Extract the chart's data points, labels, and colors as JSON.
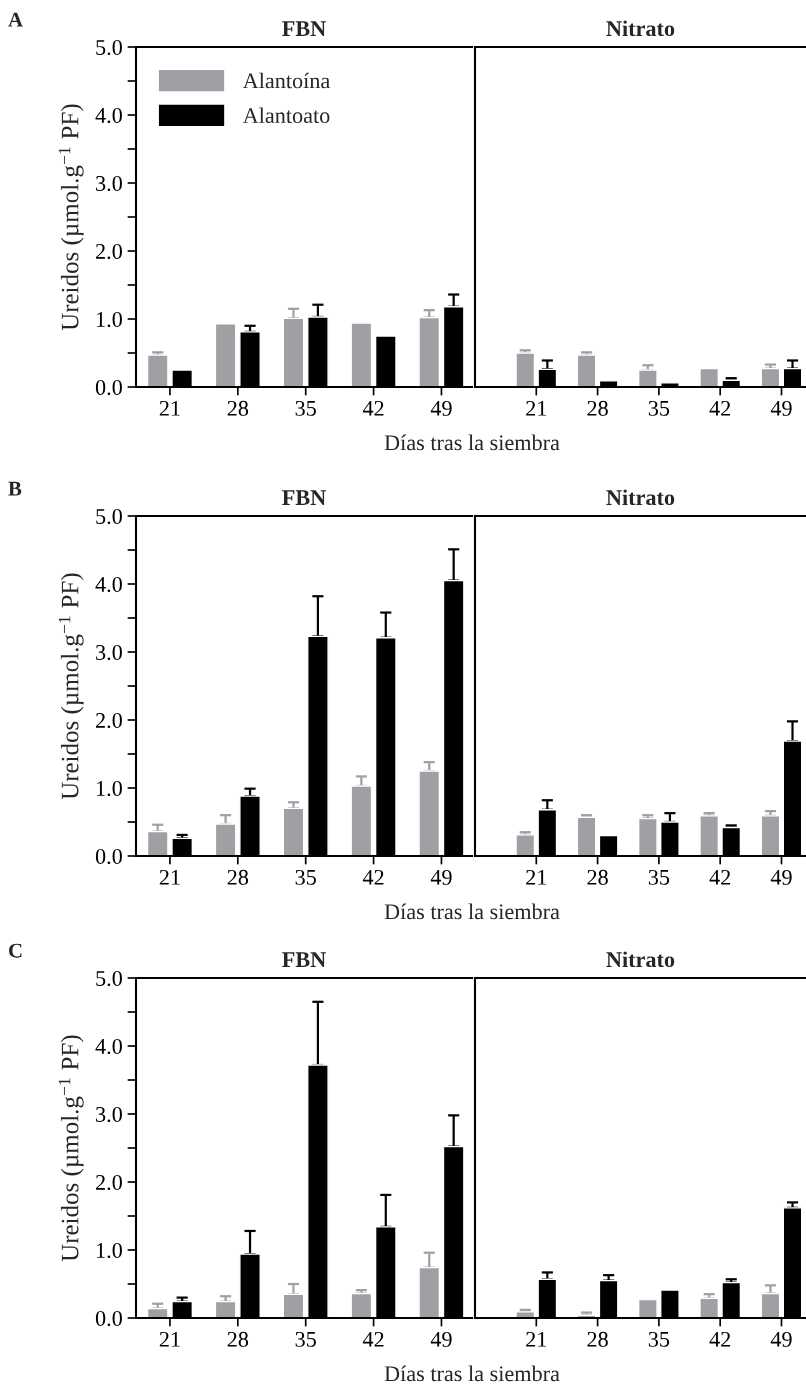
{
  "chart_data": [
    {
      "type": "bar",
      "title": "FBN",
      "xlabel": "Días tras la siembra",
      "ylabel": "Ureidos (µmol.g$^{−1}$ PF)",
      "annotations": [
        "A"
      ],
      "legend": "top left",
      "categories": [
        "21",
        "28",
        "35",
        "42",
        "49"
      ],
      "ylim": [
        0,
        5
      ],
      "yticks": [
        {
          "value": 0,
          "label": "0.0"
        },
        {
          "value": 0.5,
          "label": null
        },
        {
          "value": 1,
          "label": "1.0"
        },
        {
          "value": 1.5,
          "label": null
        },
        {
          "value": 2,
          "label": "2.0"
        },
        {
          "value": 2.5,
          "label": null
        },
        {
          "value": 3,
          "label": "3.0"
        },
        {
          "value": 3.5,
          "label": null
        },
        {
          "value": 4,
          "label": "4.0"
        },
        {
          "value": 4.5,
          "label": null
        },
        {
          "value": 5,
          "label": "5.0"
        }
      ],
      "series": [
        {
          "name": "Alantoína",
          "color": "#a0a0a4",
          "values": [
            0.47,
            0.93,
            1.01,
            0.94,
            1.02
          ],
          "errors": [
            0.04,
            null,
            0.14,
            null,
            0.11
          ]
        },
        {
          "name": "Alantoato",
          "color": "#000000",
          "values": [
            0.25,
            0.81,
            1.03,
            0.75,
            1.18
          ],
          "errors": [
            null,
            0.09,
            0.18,
            null,
            0.18
          ]
        }
      ]
    },
    {
      "type": "bar",
      "title": "Nitrato",
      "tick_labels": "x",
      "categories": [
        "21",
        "28",
        "35",
        "42",
        "49"
      ],
      "ylim": [
        0,
        5
      ],
      "series": [
        {
          "color": "#a0a0a4",
          "values": [
            0.5,
            0.47,
            0.25,
            0.27,
            0.27
          ],
          "errors": [
            0.04,
            0.04,
            0.07,
            null,
            0.06
          ]
        },
        {
          "color": "#000000",
          "values": [
            0.26,
            0.09,
            0.06,
            0.1,
            0.27
          ],
          "errors": [
            0.13,
            null,
            null,
            0.03,
            0.12
          ]
        }
      ]
    },
    {
      "type": "bar",
      "title": "FBN",
      "xlabel": "Días tras la siembra",
      "ylabel": "Ureidos (µmol.g$^{−1}$ PF)",
      "annotations": [
        "B"
      ],
      "categories": [
        "21",
        "28",
        "35",
        "42",
        "49"
      ],
      "ylim": [
        0,
        5
      ],
      "yticks": [
        {
          "value": 0,
          "label": "0.0"
        },
        {
          "value": 0.5,
          "label": null
        },
        {
          "value": 1,
          "label": "1.0"
        },
        {
          "value": 1.5,
          "label": null
        },
        {
          "value": 2,
          "label": "2.0"
        },
        {
          "value": 2.5,
          "label": null
        },
        {
          "value": 3,
          "label": "3.0"
        },
        {
          "value": 3.5,
          "label": null
        },
        {
          "value": 4,
          "label": "4.0"
        },
        {
          "value": 4.5,
          "label": null
        },
        {
          "value": 5,
          "label": "5.0"
        }
      ],
      "series": [
        {
          "color": "#a0a0a4",
          "values": [
            0.36,
            0.47,
            0.7,
            1.03,
            1.25
          ],
          "errors": [
            0.1,
            0.13,
            0.09,
            0.14,
            0.13
          ]
        },
        {
          "color": "#000000",
          "values": [
            0.26,
            0.88,
            3.23,
            3.21,
            4.05
          ],
          "errors": [
            0.05,
            0.11,
            0.59,
            0.37,
            0.46
          ]
        }
      ]
    },
    {
      "type": "bar",
      "title": "Nitrato",
      "tick_labels": "x",
      "categories": [
        "21",
        "28",
        "35",
        "42",
        "49"
      ],
      "ylim": [
        0,
        5
      ],
      "series": [
        {
          "color": "#a0a0a4",
          "values": [
            0.31,
            0.57,
            0.55,
            0.59,
            0.59
          ],
          "errors": [
            0.04,
            0.03,
            0.05,
            0.04,
            0.07
          ]
        },
        {
          "color": "#000000",
          "values": [
            0.68,
            0.3,
            0.5,
            0.42,
            1.69
          ],
          "errors": [
            0.14,
            null,
            0.13,
            0.03,
            0.29
          ]
        }
      ]
    },
    {
      "type": "bar",
      "title": "FBN",
      "xlabel": "Días tras la siembra",
      "ylabel": "Ureidos (µmol.g$^{−1}$ PF)",
      "annotations": [
        "C"
      ],
      "categories": [
        "21",
        "28",
        "35",
        "42",
        "49"
      ],
      "ylim": [
        0,
        5
      ],
      "yticks": [
        {
          "value": 0,
          "label": "0.0"
        },
        {
          "value": 0.5,
          "label": null
        },
        {
          "value": 1,
          "label": "1.0"
        },
        {
          "value": 1.5,
          "label": null
        },
        {
          "value": 2,
          "label": "2.0"
        },
        {
          "value": 2.5,
          "label": null
        },
        {
          "value": 3,
          "label": "3.0"
        },
        {
          "value": 3.5,
          "label": null
        },
        {
          "value": 4,
          "label": "4.0"
        },
        {
          "value": 4.5,
          "label": null
        },
        {
          "value": 5,
          "label": "5.0"
        }
      ],
      "series": [
        {
          "color": "#a0a0a4",
          "values": [
            0.14,
            0.24,
            0.35,
            0.36,
            0.74
          ],
          "errors": [
            0.07,
            0.08,
            0.15,
            0.05,
            0.22
          ]
        },
        {
          "color": "#000000",
          "values": [
            0.24,
            0.94,
            3.72,
            1.34,
            2.52
          ],
          "errors": [
            0.06,
            0.34,
            0.93,
            0.47,
            0.46
          ]
        }
      ]
    },
    {
      "type": "bar",
      "title": "Nitrato",
      "tick_labels": "x",
      "categories": [
        "21",
        "28",
        "35",
        "42",
        "49"
      ],
      "ylim": [
        0,
        5
      ],
      "series": [
        {
          "color": "#a0a0a4",
          "values": [
            0.09,
            0.04,
            0.27,
            0.29,
            0.36
          ],
          "errors": [
            0.03,
            0.04,
            null,
            0.06,
            0.12
          ]
        },
        {
          "color": "#000000",
          "values": [
            0.57,
            0.55,
            0.41,
            0.52,
            1.62
          ],
          "errors": [
            0.1,
            0.08,
            null,
            0.05,
            0.08
          ]
        }
      ]
    }
  ]
}
